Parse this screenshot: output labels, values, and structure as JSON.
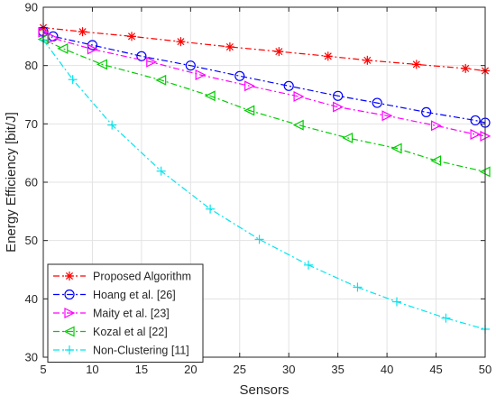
{
  "chart_data": {
    "type": "line",
    "title": "",
    "xlabel": "Sensors",
    "ylabel": "Energy Efficiency [bit/J]",
    "xlim": [
      5,
      50
    ],
    "ylim": [
      30,
      90
    ],
    "xticks": [
      5,
      10,
      15,
      20,
      25,
      30,
      35,
      40,
      45,
      50
    ],
    "yticks": [
      30,
      40,
      50,
      60,
      70,
      80,
      90
    ],
    "grid": true,
    "legend_position": "bottom-left",
    "series": [
      {
        "name": "Proposed Algorithm",
        "color": "#ff0000",
        "marker": "asterisk",
        "line_style": "dash-dot",
        "x": [
          5,
          9,
          14,
          19,
          24,
          29,
          34,
          38,
          43,
          48,
          50
        ],
        "y": [
          86.5,
          85.8,
          85.0,
          84.1,
          83.2,
          82.4,
          81.6,
          80.9,
          80.2,
          79.5,
          79.1
        ]
      },
      {
        "name": "Hoang et al. [26]",
        "color": "#0000ff",
        "marker": "circle",
        "line_style": "dash-dot",
        "x": [
          5,
          6,
          10,
          15,
          20,
          25,
          30,
          35,
          39,
          44,
          49,
          50
        ],
        "y": [
          85.8,
          85.0,
          83.5,
          81.6,
          80.0,
          78.2,
          76.5,
          74.8,
          73.6,
          72.0,
          70.6,
          70.2
        ]
      },
      {
        "name": "Maity et al. [23]",
        "color": "#ff00ff",
        "marker": "triangle-right",
        "line_style": "dash-dot",
        "x": [
          5,
          6,
          10,
          16,
          21,
          26,
          31,
          35,
          40,
          45,
          49,
          50
        ],
        "y": [
          85.7,
          84.7,
          82.8,
          80.6,
          78.4,
          76.5,
          74.7,
          72.9,
          71.4,
          69.7,
          68.2,
          67.9
        ]
      },
      {
        "name": "Kozal et al [22]",
        "color": "#00cc00",
        "marker": "triangle-left",
        "line_style": "dash-dot",
        "x": [
          5,
          7,
          11,
          17,
          22,
          26,
          31,
          36,
          41,
          45,
          50
        ],
        "y": [
          84.5,
          82.9,
          80.2,
          77.5,
          74.8,
          72.3,
          69.8,
          67.6,
          65.8,
          63.7,
          61.8
        ]
      },
      {
        "name": "Non-Clustering [11]",
        "color": "#00e5ee",
        "marker": "plus",
        "line_style": "dash-dot",
        "x": [
          5,
          8,
          12,
          17,
          22,
          27,
          32,
          37,
          41,
          46,
          50
        ],
        "y": [
          84.4,
          77.6,
          69.8,
          61.9,
          55.4,
          50.2,
          45.8,
          42.0,
          39.5,
          36.7,
          34.8
        ]
      }
    ]
  }
}
